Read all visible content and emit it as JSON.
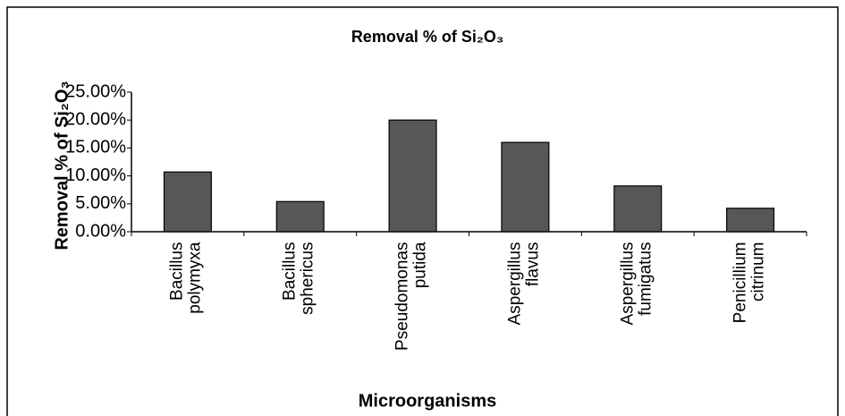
{
  "chart_data": {
    "type": "bar",
    "title": "Removal % of Si₂O₃",
    "y_label": "Removal % of Si₂O₃",
    "x_label": "Microorganisms",
    "categories": [
      "Bacillus polymyxa",
      "Bacillus sphericus",
      "Pseudomonas putida",
      "Aspergillus flavus",
      "Aspergillus fumigatus",
      "Penicillium citrinum"
    ],
    "values": [
      10.7,
      5.4,
      20,
      16,
      8.2,
      4.2
    ],
    "color": "#575757",
    "ylim": [
      0,
      25
    ],
    "yticks": [
      {
        "value": 0,
        "label": "0.00%"
      },
      {
        "value": 5,
        "label": "5.00%"
      },
      {
        "value": 10,
        "label": "10.00%"
      },
      {
        "value": 15,
        "label": "15.00%"
      },
      {
        "value": 20,
        "label": "20.00%"
      },
      {
        "value": 25,
        "label": "25.00%"
      }
    ],
    "grid": false
  }
}
